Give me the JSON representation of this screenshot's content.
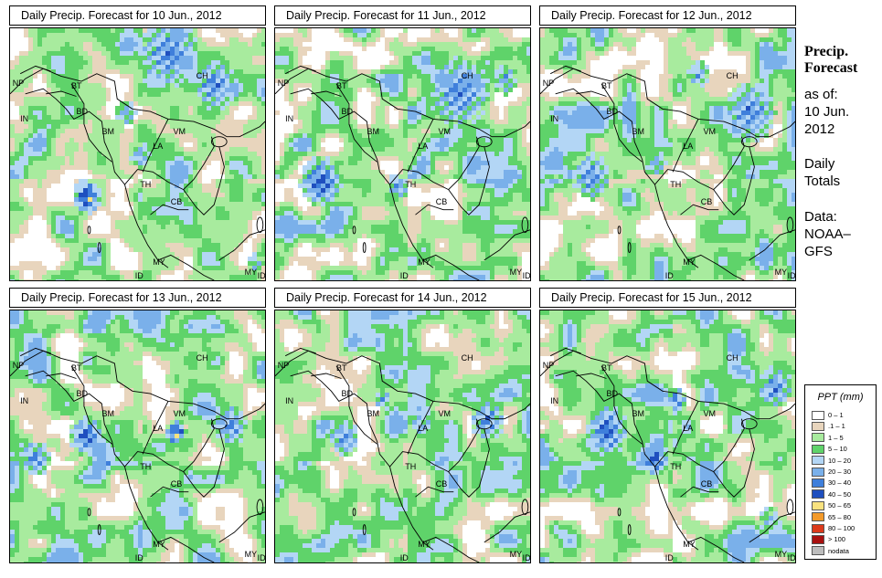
{
  "panels": [
    {
      "title": "Daily Precip. Forecast for  10 Jun., 2012",
      "seed": 11,
      "cells": [
        [
          0.62,
          0.1,
          0.14,
          6
        ],
        [
          0.8,
          0.22,
          0.1,
          6
        ],
        [
          0.3,
          0.66,
          0.07,
          8
        ],
        [
          0.51,
          0.5,
          0.05,
          5
        ],
        [
          0.96,
          0.92,
          0.04,
          4
        ],
        [
          0.45,
          0.33,
          0.05,
          5
        ]
      ]
    },
    {
      "title": "Daily Precip. Forecast for  11 Jun., 2012",
      "seed": 23,
      "cells": [
        [
          0.18,
          0.6,
          0.1,
          7
        ],
        [
          0.72,
          0.25,
          0.14,
          6
        ],
        [
          0.48,
          0.62,
          0.05,
          6
        ],
        [
          0.42,
          0.22,
          0.04,
          4
        ],
        [
          0.9,
          0.2,
          0.06,
          5
        ]
      ]
    },
    {
      "title": "Daily Precip. Forecast for  12 Jun., 2012",
      "seed": 37,
      "cells": [
        [
          0.2,
          0.58,
          0.09,
          6
        ],
        [
          0.45,
          0.53,
          0.05,
          5
        ],
        [
          0.82,
          0.33,
          0.12,
          6
        ],
        [
          0.62,
          0.18,
          0.05,
          5
        ]
      ]
    },
    {
      "title": "Daily Precip. Forecast for  13 Jun., 2012",
      "seed": 41,
      "cells": [
        [
          0.3,
          0.49,
          0.08,
          7
        ],
        [
          0.1,
          0.58,
          0.07,
          6
        ],
        [
          0.65,
          0.48,
          0.05,
          8
        ],
        [
          0.86,
          0.45,
          0.08,
          6
        ],
        [
          0.38,
          0.6,
          0.04,
          5
        ]
      ]
    },
    {
      "title": "Daily Precip. Forecast for  14 Jun., 2012",
      "seed": 53,
      "cells": [
        [
          0.27,
          0.5,
          0.07,
          6
        ],
        [
          0.57,
          0.45,
          0.05,
          5
        ],
        [
          0.83,
          0.43,
          0.08,
          6
        ],
        [
          0.42,
          0.35,
          0.04,
          5
        ]
      ]
    },
    {
      "title": "Daily Precip. Forecast for  15 Jun., 2012",
      "seed": 67,
      "cells": [
        [
          0.26,
          0.47,
          0.1,
          7
        ],
        [
          0.45,
          0.58,
          0.07,
          7
        ],
        [
          0.53,
          0.35,
          0.05,
          6
        ],
        [
          0.92,
          0.3,
          0.08,
          6
        ],
        [
          0.9,
          0.82,
          0.05,
          4
        ]
      ]
    }
  ],
  "country_labels": [
    "CH",
    "NP",
    "BT",
    "BD",
    "IN",
    "BM",
    "VM",
    "LA",
    "TH",
    "CB",
    "MY",
    "MY",
    "ID",
    "ID"
  ],
  "side": {
    "title_line1": "Precip.",
    "title_line2": "Forecast",
    "as_of": "as of:",
    "date_line1": "10 Jun.",
    "date_line2": "2012",
    "totals_line1": "Daily",
    "totals_line2": "Totals",
    "data_line1": "Data:",
    "data_line2": "NOAA–",
    "data_line3": "GFS"
  },
  "legend": {
    "title": "PPT (mm)",
    "items": [
      {
        "label": "0 – 1",
        "color": "#ffffff"
      },
      {
        "label": ".1 – 1",
        "color": "#e8d5bd"
      },
      {
        "label": "1 – 5",
        "color": "#a8eb9e"
      },
      {
        "label": "5 – 10",
        "color": "#5fd36a"
      },
      {
        "label": "10 – 20",
        "color": "#b3d6f5"
      },
      {
        "label": "20 – 30",
        "color": "#7ab0ea"
      },
      {
        "label": "30 – 40",
        "color": "#3f7fdb"
      },
      {
        "label": "40 – 50",
        "color": "#1f4fbf"
      },
      {
        "label": "50 – 65",
        "color": "#f9e27f"
      },
      {
        "label": "65 – 80",
        "color": "#f39a2a"
      },
      {
        "label": "80 – 100",
        "color": "#dc3a1b"
      },
      {
        "label": "> 100",
        "color": "#a8100f"
      },
      {
        "label": "nodata",
        "color": "#bdbdbd"
      }
    ]
  }
}
